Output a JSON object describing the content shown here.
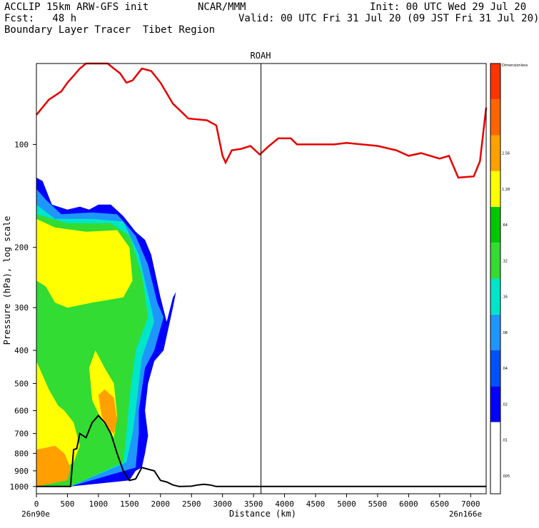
{
  "header": {
    "line1_left": "ACCLIP 15km ARW-GFS init",
    "line1_mid": "NCAR/MMM",
    "line1_right": "Init: 00 UTC Wed 29 Jul 20",
    "line2_left": "Fcst:   48 h",
    "line2_right": "Valid: 00 UTC Fri 31 Jul 20 (09 JST Fri 31 Jul 20)",
    "line3_left": "Boundary Layer Tracer  Tibet Region"
  },
  "chart_data": {
    "type": "area",
    "title": "ROAH",
    "xlabel": "Distance (km)",
    "ylabel": "Pressure (hPa), log scale",
    "y_scale": "log",
    "xlim": [
      0,
      7250
    ],
    "ylim": [
      1050,
      58
    ],
    "grid": false,
    "x_ticks": [
      "0",
      "500",
      "1000",
      "1500",
      "2000",
      "2500",
      "3000",
      "3500",
      "4000",
      "4500",
      "5000",
      "5500",
      "6000",
      "6500",
      "7000"
    ],
    "y_ticks": [
      "100",
      "200",
      "300",
      "400",
      "500",
      "600",
      "700",
      "800",
      "900",
      "1000"
    ],
    "x_start_label": "26n90e",
    "x_end_label": "26n166e",
    "marker_x_km": 3620,
    "colorbar": {
      "labels": [
        ".005",
        ".01",
        ".02",
        ".04",
        ".08",
        ".16",
        ".32",
        ".64",
        "1.28",
        "2.56",
        "Dimensionless"
      ],
      "colors": [
        "#ffffff",
        "#ffffff",
        "#0000ff",
        "#0050ff",
        "#1e96ff",
        "#00e6c8",
        "#32dc32",
        "#00c800",
        "#ffff00",
        "#ffa000",
        "#ff6400",
        "#ff3200"
      ]
    },
    "series": [
      {
        "role": "tropopause",
        "color": "#e60000",
        "points": [
          [
            0,
            82
          ],
          [
            200,
            74
          ],
          [
            400,
            70
          ],
          [
            500,
            66
          ],
          [
            600,
            63
          ],
          [
            700,
            60
          ],
          [
            800,
            58
          ],
          [
            1000,
            58
          ],
          [
            1150,
            58
          ],
          [
            1250,
            60
          ],
          [
            1350,
            62
          ],
          [
            1450,
            66
          ],
          [
            1550,
            65
          ],
          [
            1700,
            60
          ],
          [
            1850,
            61
          ],
          [
            2000,
            66
          ],
          [
            2200,
            76
          ],
          [
            2450,
            84
          ],
          [
            2750,
            85
          ],
          [
            2900,
            88
          ],
          [
            3000,
            108
          ],
          [
            3050,
            113
          ],
          [
            3150,
            104
          ],
          [
            3300,
            103
          ],
          [
            3450,
            101
          ],
          [
            3600,
            107
          ],
          [
            3750,
            101
          ],
          [
            3900,
            96
          ],
          [
            4100,
            96
          ],
          [
            4200,
            100
          ],
          [
            4400,
            100
          ],
          [
            4800,
            100
          ],
          [
            5000,
            99
          ],
          [
            5500,
            101
          ],
          [
            5800,
            104
          ],
          [
            6000,
            108
          ],
          [
            6200,
            106
          ],
          [
            6500,
            110
          ],
          [
            6650,
            108
          ],
          [
            6800,
            125
          ],
          [
            7050,
            124
          ],
          [
            7150,
            112
          ],
          [
            7250,
            78
          ]
        ]
      },
      {
        "role": "terrain",
        "color": "#000000",
        "points": [
          [
            0,
            1000
          ],
          [
            400,
            1000
          ],
          [
            550,
            1000
          ],
          [
            600,
            780
          ],
          [
            650,
            775
          ],
          [
            700,
            700
          ],
          [
            800,
            720
          ],
          [
            900,
            650
          ],
          [
            1000,
            620
          ],
          [
            1100,
            650
          ],
          [
            1200,
            700
          ],
          [
            1300,
            800
          ],
          [
            1400,
            900
          ],
          [
            1500,
            960
          ],
          [
            1600,
            950
          ],
          [
            1700,
            880
          ],
          [
            1800,
            890
          ],
          [
            1900,
            900
          ],
          [
            2000,
            960
          ],
          [
            2100,
            970
          ],
          [
            2200,
            990
          ],
          [
            2300,
            1000
          ],
          [
            2500,
            998
          ],
          [
            2600,
            990
          ],
          [
            2700,
            985
          ],
          [
            2800,
            990
          ],
          [
            2900,
            1000
          ],
          [
            3000,
            1000
          ],
          [
            5000,
            1000
          ],
          [
            7250,
            1000
          ]
        ]
      }
    ],
    "tracer_polygons": [
      {
        "level": ".02",
        "color": "#0000ff",
        "points": [
          [
            0,
            125
          ],
          [
            100,
            128
          ],
          [
            250,
            150
          ],
          [
            500,
            155
          ],
          [
            700,
            152
          ],
          [
            850,
            155
          ],
          [
            1000,
            150
          ],
          [
            1200,
            150
          ],
          [
            1400,
            162
          ],
          [
            1600,
            180
          ],
          [
            1750,
            190
          ],
          [
            1850,
            210
          ],
          [
            2000,
            280
          ],
          [
            2100,
            330
          ],
          [
            2200,
            280
          ],
          [
            2250,
            270
          ],
          [
            2200,
            300
          ],
          [
            2050,
            400
          ],
          [
            1900,
            430
          ],
          [
            1800,
            500
          ],
          [
            1750,
            600
          ],
          [
            1800,
            710
          ],
          [
            1750,
            800
          ],
          [
            1700,
            880
          ],
          [
            1600,
            900
          ],
          [
            1500,
            960
          ],
          [
            550,
            1000
          ],
          [
            0,
            1000
          ]
        ]
      },
      {
        "level": ".08",
        "color": "#1e96ff",
        "points": [
          [
            0,
            135
          ],
          [
            150,
            145
          ],
          [
            400,
            160
          ],
          [
            900,
            158
          ],
          [
            1300,
            160
          ],
          [
            1600,
            185
          ],
          [
            1800,
            225
          ],
          [
            1950,
            290
          ],
          [
            2050,
            320
          ],
          [
            1900,
            400
          ],
          [
            1750,
            450
          ],
          [
            1650,
            600
          ],
          [
            1650,
            700
          ],
          [
            1600,
            880
          ],
          [
            550,
            1000
          ],
          [
            0,
            1000
          ]
        ]
      },
      {
        "level": ".16",
        "color": "#00e6c8",
        "points": [
          [
            0,
            150
          ],
          [
            300,
            165
          ],
          [
            900,
            165
          ],
          [
            1400,
            168
          ],
          [
            1650,
            210
          ],
          [
            1850,
            300
          ],
          [
            1900,
            330
          ],
          [
            1700,
            420
          ],
          [
            1600,
            600
          ],
          [
            1550,
            700
          ],
          [
            1450,
            850
          ],
          [
            550,
            1000
          ],
          [
            0,
            1000
          ]
        ]
      },
      {
        "level": ".32",
        "color": "#32dc32",
        "points": [
          [
            0,
            160
          ],
          [
            500,
            170
          ],
          [
            1200,
            170
          ],
          [
            1500,
            185
          ],
          [
            1700,
            240
          ],
          [
            1800,
            320
          ],
          [
            1600,
            400
          ],
          [
            1500,
            550
          ],
          [
            1450,
            700
          ],
          [
            1400,
            850
          ],
          [
            550,
            1000
          ],
          [
            0,
            1000
          ]
        ]
      },
      {
        "level": ".64",
        "color": "#ffff00",
        "points": [
          [
            0,
            165
          ],
          [
            300,
            175
          ],
          [
            800,
            180
          ],
          [
            1300,
            178
          ],
          [
            1500,
            200
          ],
          [
            1550,
            250
          ],
          [
            1400,
            280
          ],
          [
            900,
            290
          ],
          [
            500,
            300
          ],
          [
            300,
            290
          ],
          [
            150,
            260
          ],
          [
            0,
            250
          ]
        ]
      },
      {
        "level": ".64",
        "color": "#ffff00",
        "points": [
          [
            0,
            430
          ],
          [
            200,
            520
          ],
          [
            350,
            580
          ],
          [
            450,
            600
          ],
          [
            600,
            650
          ],
          [
            700,
            760
          ],
          [
            600,
            850
          ],
          [
            400,
            900
          ],
          [
            0,
            950
          ]
        ]
      },
      {
        "level": ".64",
        "color": "#ffff00",
        "points": [
          [
            950,
            400
          ],
          [
            1100,
            450
          ],
          [
            1250,
            500
          ],
          [
            1300,
            620
          ],
          [
            1250,
            720
          ],
          [
            1050,
            640
          ],
          [
            900,
            560
          ],
          [
            850,
            450
          ]
        ]
      },
      {
        "level": "1.28",
        "color": "#ffa000",
        "points": [
          [
            0,
            780
          ],
          [
            300,
            760
          ],
          [
            450,
            800
          ],
          [
            550,
            880
          ],
          [
            500,
            960
          ],
          [
            0,
            1000
          ]
        ]
      },
      {
        "level": "1.28",
        "color": "#ffa000",
        "points": [
          [
            1000,
            540
          ],
          [
            1100,
            520
          ],
          [
            1250,
            550
          ],
          [
            1300,
            640
          ],
          [
            1250,
            700
          ],
          [
            1150,
            680
          ],
          [
            1050,
            620
          ]
        ]
      }
    ]
  }
}
